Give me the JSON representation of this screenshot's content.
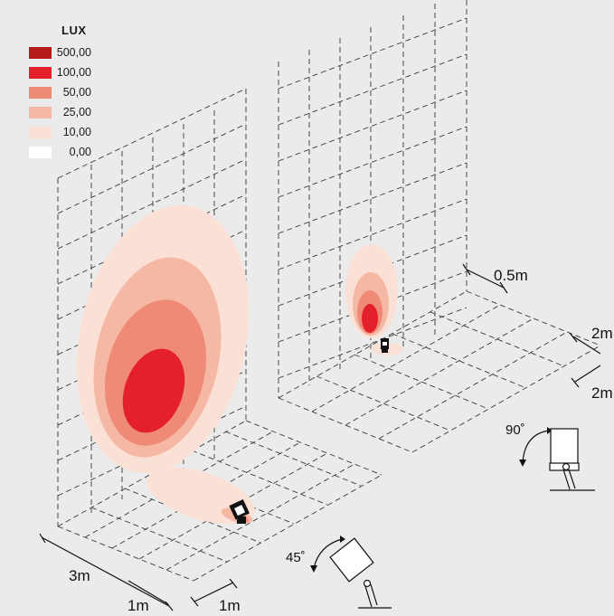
{
  "legend": {
    "title": "LUX",
    "items": [
      {
        "label": "500,00",
        "color": "#b41a1a"
      },
      {
        "label": "100,00",
        "color": "#e4202a"
      },
      {
        "label": "50,00",
        "color": "#ef8a77"
      },
      {
        "label": "25,00",
        "color": "#f5b8a4"
      },
      {
        "label": "10,00",
        "color": "#fbe0d6"
      },
      {
        "label": "0,00",
        "color": "#ffffff"
      }
    ]
  },
  "dimensions": {
    "left_depth": "3m",
    "left_grid_a": "1m",
    "left_grid_b": "1m",
    "right_offset": "0.5m",
    "right_grid_a": "2m",
    "right_grid_b": "2m"
  },
  "angles": {
    "tilt_left": "45˚",
    "tilt_right": "90˚"
  },
  "colors": {
    "background": "#ebebeb",
    "grid": "#3a3a3a"
  }
}
